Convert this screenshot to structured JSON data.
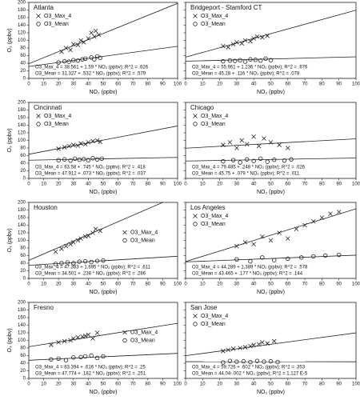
{
  "chart_data": [
    {
      "type": "scatter",
      "title": "Atlanta",
      "x_label": "NO₂ (ppbv)",
      "y_label": "O₃ (ppbv)",
      "xlim": [
        0,
        100
      ],
      "xticks": [
        0,
        10,
        20,
        30,
        40,
        50,
        60,
        70,
        80,
        90,
        100
      ],
      "ylim": [
        0,
        200
      ],
      "yticks": [
        0,
        20,
        40,
        60,
        80,
        100,
        120,
        140,
        160,
        180,
        200
      ],
      "ytick_labels": true,
      "legend": "upper-left",
      "annotations": [
        "O3_Max_4 = 38.561 + 1.59 * NO₂ (ppbv); R^2 = .626",
        "O3_Mean = 31.327 + .532 * NO₂ (ppbv); R^2 = .579"
      ],
      "series": [
        {
          "name": "O3_Max_4",
          "marker": "x",
          "color": "#222",
          "fit": {
            "intercept": 38.561,
            "slope": 1.59
          },
          "x": [
            22,
            25,
            28,
            30,
            33,
            35,
            37,
            40,
            42,
            44,
            45,
            47
          ],
          "values": [
            70,
            80,
            75,
            90,
            88,
            100,
            95,
            105,
            120,
            110,
            125,
            115
          ]
        },
        {
          "name": "O3_Mean",
          "marker": "o",
          "color": "#222",
          "fit": {
            "intercept": 31.327,
            "slope": 0.532
          },
          "x": [
            20,
            24,
            27,
            30,
            33,
            36,
            38,
            42,
            44,
            46,
            48
          ],
          "values": [
            42,
            45,
            44,
            48,
            47,
            50,
            52,
            55,
            50,
            58,
            54
          ]
        }
      ]
    },
    {
      "type": "scatter",
      "title": "Bridgeport - Stamford CT",
      "x_label": "NO₂ (ppbv)",
      "xlim": [
        0,
        100
      ],
      "xticks": [
        0,
        10,
        20,
        30,
        40,
        50,
        60,
        70,
        80,
        90,
        100
      ],
      "ylim": [
        0,
        200
      ],
      "yticks": [
        0,
        20,
        40,
        60,
        80,
        100,
        120,
        140,
        160,
        180,
        200
      ],
      "ytick_labels": false,
      "legend": "upper-left",
      "annotations": [
        "O3_Max_4 = 55.961 + 1.236 * NO₂ (ppbv); R^2 = .676",
        "O3_Mean = 45.28 + .116 * NO₂ (ppbv); R^2 = .078"
      ],
      "series": [
        {
          "name": "O3_Max_4",
          "marker": "x",
          "color": "#222",
          "fit": {
            "intercept": 55.961,
            "slope": 1.236
          },
          "x": [
            22,
            25,
            28,
            30,
            33,
            35,
            38,
            40,
            42,
            45,
            48
          ],
          "values": [
            85,
            82,
            90,
            95,
            92,
            100,
            98,
            105,
            110,
            108,
            112
          ]
        },
        {
          "name": "O3_Mean",
          "marker": "o",
          "color": "#222",
          "fit": {
            "intercept": 45.28,
            "slope": 0.116
          },
          "x": [
            22,
            26,
            29,
            32,
            35,
            38,
            41,
            44,
            47,
            50
          ],
          "values": [
            45,
            47,
            46,
            48,
            44,
            50,
            49,
            47,
            52,
            48
          ]
        }
      ]
    },
    {
      "type": "scatter",
      "title": "Cincinnati",
      "x_label": "NO₂ (ppbv)",
      "y_label": "O₃ (ppbv)",
      "xlim": [
        0,
        100
      ],
      "xticks": [
        0,
        10,
        20,
        30,
        40,
        50,
        60,
        70,
        80,
        90,
        100
      ],
      "ylim": [
        0,
        200
      ],
      "yticks": [
        0,
        20,
        40,
        60,
        80,
        100,
        120,
        140,
        160,
        180,
        200
      ],
      "ytick_labels": true,
      "legend": "upper-left",
      "annotations": [
        "O3_Max_4 = 63.58 + .745 * NO₂ (ppbv); R^2 = .418",
        "O3_Mean = 47.912 + .073 * NO₂ (ppbv); R^2 = .037"
      ],
      "series": [
        {
          "name": "O3_Max_4",
          "marker": "x",
          "color": "#222",
          "fit": {
            "intercept": 63.58,
            "slope": 0.745
          },
          "x": [
            20,
            24,
            27,
            30,
            33,
            35,
            38,
            40,
            43,
            46,
            48
          ],
          "values": [
            78,
            82,
            85,
            88,
            86,
            92,
            90,
            95,
            98,
            100,
            96
          ]
        },
        {
          "name": "O3_Mean",
          "marker": "o",
          "color": "#222",
          "fit": {
            "intercept": 47.912,
            "slope": 0.073
          },
          "x": [
            20,
            24,
            28,
            31,
            34,
            37,
            40,
            43,
            46,
            49
          ],
          "values": [
            48,
            50,
            47,
            52,
            49,
            51,
            48,
            53,
            50,
            52
          ]
        }
      ]
    },
    {
      "type": "scatter",
      "title": "Chicago",
      "x_label": "NO₂ (ppbv)",
      "xlim": [
        0,
        100
      ],
      "xticks": [
        0,
        10,
        20,
        30,
        40,
        50,
        60,
        70,
        80,
        90,
        100
      ],
      "ylim": [
        0,
        200
      ],
      "yticks": [
        0,
        20,
        40,
        60,
        80,
        100,
        120,
        140,
        160,
        180,
        200
      ],
      "ytick_labels": false,
      "legend": "upper-left",
      "annotations": [
        "O3_Max_4 = 79.485 + .248 * NO₂ (ppbv); R^2 = .026",
        "O3_Mean = 45.75 + .079 * NO₂ (ppbv); R^2 = .011"
      ],
      "series": [
        {
          "name": "O3_Max_4",
          "marker": "x",
          "color": "#222",
          "fit": {
            "intercept": 79.485,
            "slope": 0.248
          },
          "x": [
            22,
            26,
            30,
            33,
            36,
            40,
            43,
            46,
            50,
            55,
            60
          ],
          "values": [
            88,
            95,
            80,
            100,
            90,
            110,
            85,
            105,
            95,
            88,
            80
          ]
        },
        {
          "name": "O3_Mean",
          "marker": "o",
          "color": "#222",
          "fit": {
            "intercept": 45.75,
            "slope": 0.079
          },
          "x": [
            22,
            28,
            32,
            36,
            40,
            44,
            48,
            52,
            58,
            62
          ],
          "values": [
            45,
            48,
            42,
            50,
            46,
            52,
            44,
            49,
            47,
            50
          ]
        }
      ]
    },
    {
      "type": "scatter",
      "title": "Houston",
      "x_label": "NO₂ (ppbv)",
      "y_label": "O₃ (ppbv)",
      "xlim": [
        0,
        100
      ],
      "xticks": [
        0,
        10,
        20,
        30,
        40,
        50,
        60,
        70,
        80,
        90,
        100
      ],
      "ylim": [
        0,
        200
      ],
      "yticks": [
        0,
        20,
        40,
        60,
        80,
        100,
        120,
        140,
        160,
        180,
        200
      ],
      "ytick_labels": true,
      "legend": "right",
      "annotations": [
        "O3_Max_4 = 47.383 + 1.695 * NO₂ (ppbv); R^2 = .611",
        "O3_Mean = 34.501 + .238 * NO₂ (ppbv); R^2 = .286"
      ],
      "series": [
        {
          "name": "O3_Max_4",
          "marker": "x",
          "color": "#222",
          "fit": {
            "intercept": 47.383,
            "slope": 1.695
          },
          "x": [
            18,
            22,
            25,
            28,
            30,
            33,
            35,
            38,
            40,
            43,
            45,
            48
          ],
          "values": [
            70,
            78,
            85,
            90,
            95,
            100,
            105,
            110,
            112,
            120,
            130,
            125
          ]
        },
        {
          "name": "O3_Mean",
          "marker": "o",
          "color": "#222",
          "fit": {
            "intercept": 34.501,
            "slope": 0.238
          },
          "x": [
            18,
            22,
            26,
            30,
            34,
            38,
            42,
            46,
            50
          ],
          "values": [
            38,
            40,
            42,
            40,
            44,
            45,
            43,
            46,
            47
          ]
        }
      ]
    },
    {
      "type": "scatter",
      "title": "Los Angeles",
      "x_label": "NO₂ (ppbv)",
      "xlim": [
        0,
        100
      ],
      "xticks": [
        0,
        10,
        20,
        30,
        40,
        50,
        60,
        70,
        80,
        90,
        100
      ],
      "ylim": [
        0,
        200
      ],
      "yticks": [
        0,
        20,
        40,
        60,
        80,
        100,
        120,
        140,
        160,
        180,
        200
      ],
      "ytick_labels": false,
      "legend": "upper-left",
      "annotations": [
        "O3_Max_4 = 44.289 + 1.389 * NO₂ (ppbv); R^2 = .578",
        "O3_Mean = 43.465 + .177 * NO₂ (ppbv); R^2 = .144"
      ],
      "series": [
        {
          "name": "O3_Max_4",
          "marker": "x",
          "color": "#222",
          "fit": {
            "intercept": 44.289,
            "slope": 1.389
          },
          "x": [
            30,
            35,
            40,
            45,
            50,
            55,
            60,
            65,
            70,
            75,
            80,
            85,
            90
          ],
          "values": [
            85,
            95,
            90,
            110,
            100,
            120,
            105,
            130,
            140,
            150,
            160,
            170,
            175
          ]
        },
        {
          "name": "O3_Mean",
          "marker": "o",
          "color": "#222",
          "fit": {
            "intercept": 43.465,
            "slope": 0.177
          },
          "x": [
            30,
            38,
            45,
            52,
            60,
            68,
            75,
            82,
            90
          ],
          "values": [
            50,
            45,
            55,
            48,
            52,
            55,
            58,
            60,
            62
          ]
        }
      ]
    },
    {
      "type": "scatter",
      "title": "Fresno",
      "x_label": "NO₂ (ppbv)",
      "y_label": "O₃ (ppbv)",
      "xlim": [
        0,
        100
      ],
      "xticks": [
        0,
        10,
        20,
        30,
        40,
        50,
        60,
        70,
        80,
        90,
        100
      ],
      "ylim": [
        0,
        200
      ],
      "yticks": [
        0,
        20,
        40,
        60,
        80,
        100,
        120,
        140,
        160,
        180,
        200
      ],
      "ytick_labels": true,
      "legend": "right",
      "annotations": [
        "O3_Max_4 = 83.394 + .616 * NO₂ (ppbv); R^2 = .25",
        "O3_Mean = 47.774 + .182 * NO₂ (ppbv); R^2 = .251"
      ],
      "series": [
        {
          "name": "O3_Max_4",
          "marker": "x",
          "color": "#222",
          "fit": {
            "intercept": 83.394,
            "slope": 0.616
          },
          "x": [
            15,
            20,
            24,
            28,
            30,
            33,
            36,
            38,
            40,
            43,
            46
          ],
          "values": [
            88,
            95,
            98,
            100,
            105,
            108,
            110,
            112,
            115,
            105,
            120
          ]
        },
        {
          "name": "O3_Mean",
          "marker": "o",
          "color": "#222",
          "fit": {
            "intercept": 47.774,
            "slope": 0.182
          },
          "x": [
            15,
            20,
            25,
            30,
            35,
            38,
            42,
            46,
            50
          ],
          "values": [
            50,
            52,
            48,
            55,
            56,
            58,
            60,
            54,
            58
          ]
        }
      ]
    },
    {
      "type": "scatter",
      "title": "San Jose",
      "x_label": "NO₂ (ppbv)",
      "xlim": [
        0,
        100
      ],
      "xticks": [
        0,
        10,
        20,
        30,
        40,
        50,
        60,
        70,
        80,
        90,
        100
      ],
      "ylim": [
        0,
        200
      ],
      "yticks": [
        0,
        20,
        40,
        60,
        80,
        100,
        120,
        140,
        160,
        180,
        200
      ],
      "ytick_labels": false,
      "legend": "upper-left",
      "annotations": [
        "O3_Max_4 = 59.726 + .602 * NO₂ (ppbv); R^2 = .353",
        "O3_Mean = 44.04-.002 * NO₂ (ppbv); R^2 = 1.127 E-5"
      ],
      "series": [
        {
          "name": "O3_Max_4",
          "marker": "x",
          "color": "#222",
          "fit": {
            "intercept": 59.726,
            "slope": 0.602
          },
          "x": [
            22,
            25,
            28,
            32,
            35,
            38,
            40,
            43,
            45,
            48,
            52
          ],
          "values": [
            72,
            75,
            78,
            80,
            82,
            85,
            88,
            90,
            95,
            92,
            98
          ]
        },
        {
          "name": "O3_Mean",
          "marker": "o",
          "color": "#222",
          "fit": {
            "intercept": 44.04,
            "slope": -0.002
          },
          "x": [
            22,
            26,
            30,
            34,
            38,
            42,
            46,
            50,
            54
          ],
          "values": [
            42,
            46,
            44,
            45,
            43,
            46,
            44,
            45,
            43
          ]
        }
      ]
    }
  ]
}
